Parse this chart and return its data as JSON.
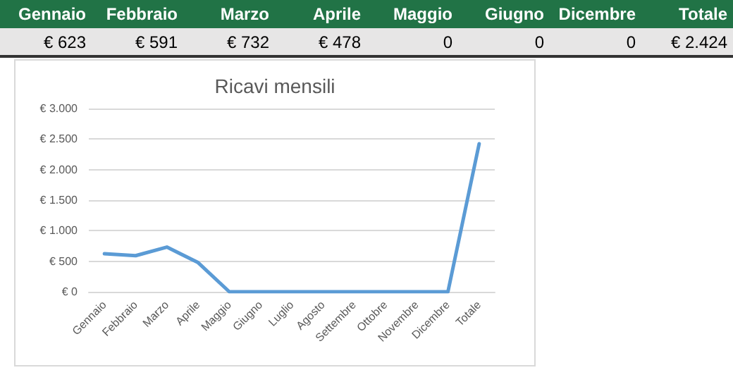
{
  "chart_data": [
    {
      "type": "other",
      "categories": [
        "Gennaio",
        "Febbraio",
        "Marzo",
        "Aprile",
        "Maggio",
        "Giugno",
        "Dicembre",
        "Totale"
      ],
      "annotations": [
        "€ 623",
        "€ 591",
        "€ 732",
        "€ 478",
        "0",
        "0",
        "0",
        "€ 2.424"
      ]
    },
    {
      "type": "line",
      "title": "Ricavi mensili",
      "categories": [
        "Gennaio",
        "Febbraio",
        "Marzo",
        "Aprile",
        "Maggio",
        "Giugno",
        "Luglio",
        "Agosto",
        "Settembre",
        "Ottobre",
        "Novembre",
        "Dicembre",
        "Totale"
      ],
      "series": [
        {
          "color": "#5b9bd5",
          "values": [
            623,
            591,
            732,
            478,
            0,
            0,
            0,
            0,
            0,
            0,
            0,
            0,
            2424
          ]
        }
      ],
      "ylim": [
        0,
        3000
      ],
      "yticks": [
        {
          "value": 0,
          "label": "€ 0"
        },
        {
          "value": 500,
          "label": "€ 500"
        },
        {
          "value": 1000,
          "label": "€ 1.000"
        },
        {
          "value": 1500,
          "label": "€ 1.500"
        },
        {
          "value": 2000,
          "label": "€ 2.000"
        },
        {
          "value": 2500,
          "label": "€ 2.500"
        },
        {
          "value": 3000,
          "label": "€ 3.000"
        }
      ],
      "grid": "y",
      "marker": "none",
      "line_style": "solid"
    }
  ]
}
